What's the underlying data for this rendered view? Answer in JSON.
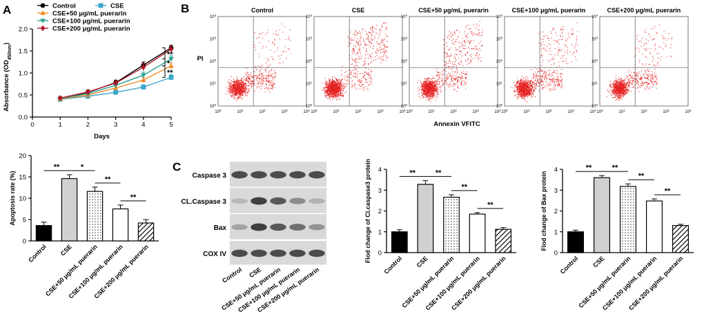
{
  "panel_labels": {
    "a": "A",
    "b": "B",
    "c": "C"
  },
  "chart_data": [
    {
      "id": "growth",
      "type": "line",
      "title": "",
      "xlabel": "Days",
      "ylabel_main": "Absorbance (OD",
      "ylabel_sub": "450nm",
      "ylabel_end": ")",
      "x": [
        1,
        2,
        3,
        4,
        5
      ],
      "xlim": [
        0,
        5
      ],
      "ylim": [
        0,
        2.0
      ],
      "xticks": [
        "0",
        "1",
        "2",
        "3",
        "4",
        "5"
      ],
      "yticks": [
        "0.0",
        "0.5",
        "1.0",
        "1.5",
        "2.0"
      ],
      "legend": "top-left",
      "series": [
        {
          "name": "Control",
          "color": "#000000",
          "marker": "circle",
          "values": [
            0.42,
            0.56,
            0.78,
            1.18,
            1.57
          ],
          "errors": [
            0.04,
            0.05,
            0.06,
            0.07,
            0.06
          ]
        },
        {
          "name": "CSE",
          "color": "#3aa6c8",
          "marker": "square",
          "values": [
            0.4,
            0.47,
            0.56,
            0.68,
            0.9
          ],
          "errors": [
            0.03,
            0.04,
            0.04,
            0.05,
            0.06
          ]
        },
        {
          "name": "CSE+50 μg/mL puerarin",
          "color": "#f08a24",
          "marker": "triangle",
          "values": [
            0.41,
            0.5,
            0.66,
            0.84,
            1.16
          ],
          "errors": [
            0.03,
            0.04,
            0.05,
            0.06,
            0.07
          ]
        },
        {
          "name": "CSE+100 μg/mL puerarin",
          "color": "#2aa090",
          "marker": "triangle-down",
          "values": [
            0.42,
            0.53,
            0.72,
            0.95,
            1.32
          ],
          "errors": [
            0.03,
            0.04,
            0.05,
            0.07,
            0.07
          ]
        },
        {
          "name": "CSE+200 μg/mL puerarin",
          "color": "#b0162a",
          "marker": "diamond",
          "values": [
            0.43,
            0.57,
            0.77,
            1.13,
            1.54
          ],
          "errors": [
            0.04,
            0.05,
            0.06,
            0.08,
            0.07
          ]
        }
      ],
      "annotations": [
        {
          "text": "**",
          "from": 1.57,
          "to": 1.32
        },
        {
          "text": "*",
          "from": 1.32,
          "to": 1.16
        },
        {
          "text": "**",
          "from": 1.16,
          "to": 0.9
        }
      ]
    },
    {
      "id": "apoptosis",
      "type": "bar",
      "title": "",
      "xlabel": "",
      "ylabel": "Apoptosis rate (%)",
      "categories": [
        "Control",
        "CSE",
        "CSE+50 μg/mL puerarin",
        "CSE+100 μg/mL puerarin",
        "CSE+200 μg/mL puerarin"
      ],
      "values": [
        3.6,
        14.6,
        11.6,
        7.5,
        4.2
      ],
      "errors": [
        0.8,
        0.9,
        1.0,
        0.9,
        0.8
      ],
      "fills": [
        "solid-black",
        "solid-gray",
        "dots",
        "white",
        "hatch"
      ],
      "ylim": [
        0,
        20
      ],
      "yticks": [
        "0",
        "5",
        "10",
        "15",
        "20"
      ],
      "significance": [
        {
          "a": 0,
          "b": 1,
          "text": "**"
        },
        {
          "a": 1,
          "b": 2,
          "text": "*"
        },
        {
          "a": 2,
          "b": 3,
          "text": "**"
        },
        {
          "a": 3,
          "b": 4,
          "text": "**"
        }
      ]
    },
    {
      "id": "caspase3",
      "type": "bar",
      "title": "",
      "xlabel": "",
      "ylabel": "Flod change of Cl.caspase3 protein",
      "categories": [
        "Control",
        "CSE",
        "CSE+50 μg/mL puerarin",
        "CSE+100 μg/mL puerarin",
        "CSE+200 μg/mL puerarin"
      ],
      "values": [
        1.0,
        3.28,
        2.66,
        1.85,
        1.12
      ],
      "errors": [
        0.1,
        0.18,
        0.12,
        0.07,
        0.08
      ],
      "fills": [
        "solid-black",
        "solid-gray",
        "dots",
        "white",
        "hatch"
      ],
      "ylim": [
        0,
        4
      ],
      "yticks": [
        "0",
        "1",
        "2",
        "3",
        "4"
      ],
      "significance": [
        {
          "a": 0,
          "b": 1,
          "text": "**"
        },
        {
          "a": 1,
          "b": 2,
          "text": "**"
        },
        {
          "a": 2,
          "b": 3,
          "text": "**"
        },
        {
          "a": 3,
          "b": 4,
          "text": "**"
        }
      ]
    },
    {
      "id": "bax",
      "type": "bar",
      "title": "",
      "xlabel": "",
      "ylabel": "Flod change of Bax protein",
      "categories": [
        "Control",
        "CSE",
        "CSE+50 μg/mL puerarin",
        "CSE+100 μg/mL puerarin",
        "CSE+200 μg/mL puerarin"
      ],
      "values": [
        1.0,
        3.6,
        3.18,
        2.48,
        1.3
      ],
      "errors": [
        0.08,
        0.1,
        0.12,
        0.1,
        0.06
      ],
      "fills": [
        "solid-black",
        "solid-gray",
        "dots",
        "white",
        "hatch"
      ],
      "ylim": [
        0,
        4
      ],
      "yticks": [
        "0",
        "1",
        "2",
        "3",
        "4"
      ],
      "significance": [
        {
          "a": 0,
          "b": 1,
          "text": "**"
        },
        {
          "a": 1,
          "b": 2,
          "text": "**"
        },
        {
          "a": 2,
          "b": 3,
          "text": "**"
        },
        {
          "a": 3,
          "b": 4,
          "text": "**"
        }
      ]
    }
  ],
  "flow": {
    "y_axis": "PI",
    "x_axis": "Annexin VFITC",
    "decades": [
      "0",
      "1",
      "2",
      "3",
      "4"
    ],
    "panels": [
      {
        "title": "Control",
        "density": 0.35
      },
      {
        "title": "CSE",
        "density": 0.95
      },
      {
        "title": "CSE+50 μg/mL puerarin",
        "density": 0.8
      },
      {
        "title": "CSE+100 μg/mL puerarin",
        "density": 0.6
      },
      {
        "title": "CSE+200 μg/mL puerarin",
        "density": 0.4
      }
    ]
  },
  "western": {
    "rows": [
      "Caspase 3",
      "CL.Caspase 3",
      "Bax",
      "COX IV"
    ],
    "lanes": [
      "Control",
      "CSE",
      "CSE+50 μg/mL puerarin",
      "CSE+100 μg/mL puerarin",
      "CSE+200 μg/mL puerarin"
    ],
    "intensity": [
      [
        0.9,
        0.9,
        0.9,
        0.9,
        0.9
      ],
      [
        0.3,
        0.95,
        0.85,
        0.6,
        0.35
      ],
      [
        0.45,
        0.95,
        0.85,
        0.75,
        0.55
      ],
      [
        0.9,
        0.9,
        0.9,
        0.9,
        0.9
      ]
    ]
  }
}
